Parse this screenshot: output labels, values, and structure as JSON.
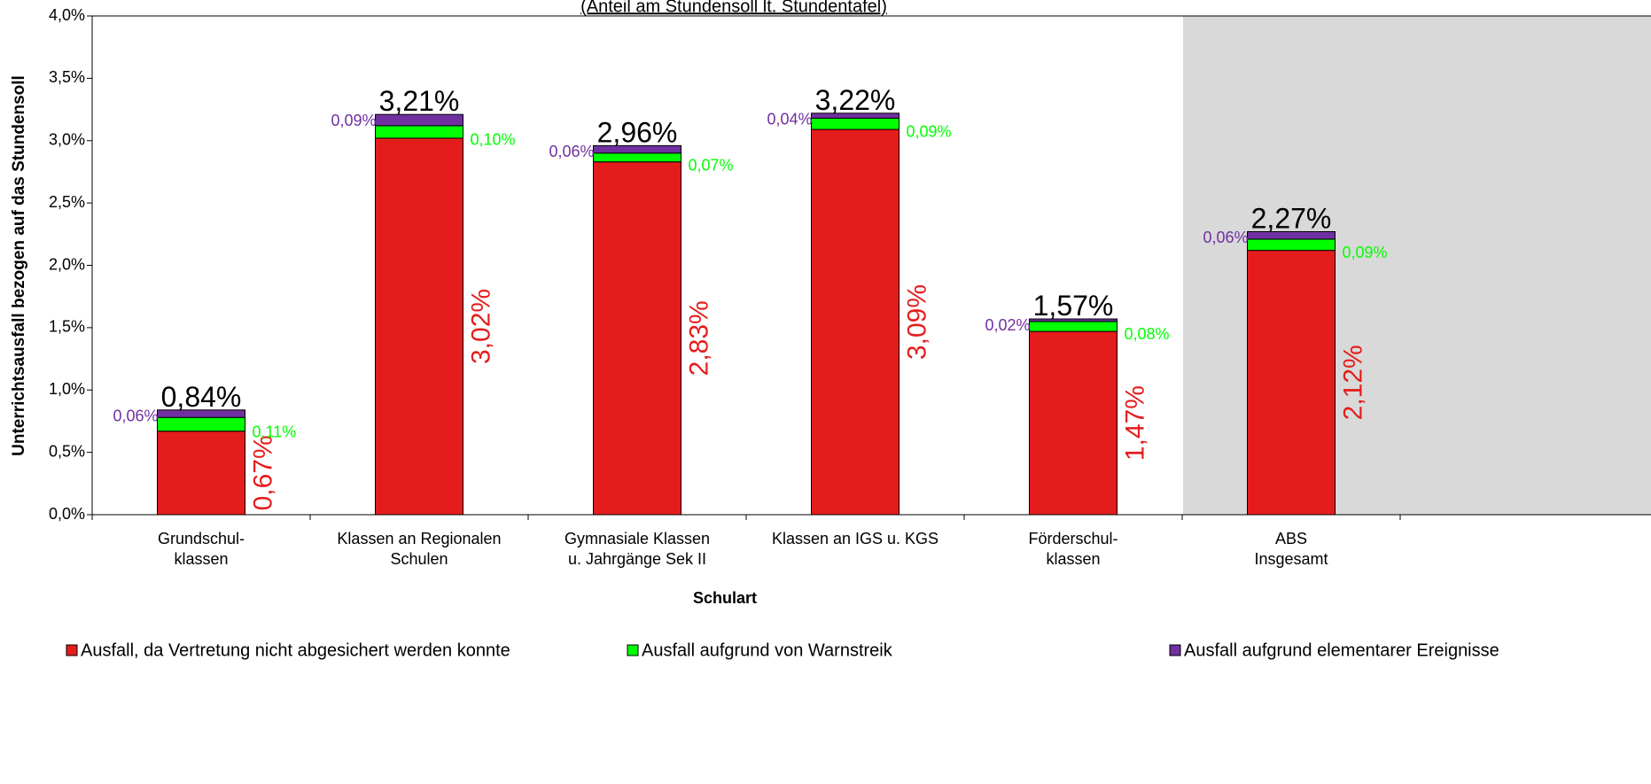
{
  "chart_data": {
    "type": "stacked_bar",
    "subtitle": "(Anteil am Stundensoll lt. Stundentafel)",
    "x_label": "Schulart",
    "y_label": "Unterrichtsausfall bezogen auf das Stundensoll",
    "categories": [
      "Grundschul-\nklassen",
      "Klassen an Regionalen\nSchulen",
      "Gymnasiale Klassen\nu. Jahrgänge Sek II",
      "Klassen an IGS u. KGS",
      "Förderschul-\nklassen",
      "ABS\nInsgesamt"
    ],
    "series": [
      {
        "name": "Ausfall, da Vertretung nicht abgesichert werden konnte",
        "color": "#e51c1c",
        "values": [
          0.67,
          3.02,
          2.83,
          3.09,
          1.47,
          2.12
        ],
        "value_labels": [
          "0,67%",
          "3,02%",
          "2,83%",
          "3,09%",
          "1,47%",
          "2,12%"
        ]
      },
      {
        "name": "Ausfall aufgrund von Warnstreik",
        "color": "#00ff00",
        "values": [
          0.11,
          0.1,
          0.07,
          0.09,
          0.08,
          0.09
        ],
        "value_labels": [
          "0,11%",
          "0,10%",
          "0,07%",
          "0,09%",
          "0,08%",
          "0,09%"
        ]
      },
      {
        "name": "Ausfall aufgrund elementarer Ereignisse",
        "color": "#7030a0",
        "values": [
          0.06,
          0.09,
          0.06,
          0.04,
          0.02,
          0.06
        ],
        "value_labels": [
          "0,06%",
          "0,09%",
          "0,06%",
          "0,04%",
          "0,02%",
          "0,06%"
        ]
      }
    ],
    "totals": [
      0.84,
      3.21,
      2.96,
      3.22,
      1.57,
      2.27
    ],
    "total_labels": [
      "0,84%",
      "3,21%",
      "2,96%",
      "3,22%",
      "1,57%",
      "2,27%"
    ],
    "ylim": [
      0,
      4
    ],
    "yticks": [
      {
        "value": 0,
        "label": "0,0%"
      },
      {
        "value": 0.5,
        "label": "0,5%"
      },
      {
        "value": 1,
        "label": "1,0%"
      },
      {
        "value": 1.5,
        "label": "1,5%"
      },
      {
        "value": 2,
        "label": "2,0%"
      },
      {
        "value": 2.5,
        "label": "2,5%"
      },
      {
        "value": 3,
        "label": "3,0%"
      },
      {
        "value": 3.5,
        "label": "3,5%"
      },
      {
        "value": 4,
        "label": "4,0%"
      }
    ],
    "legend": "bottom"
  }
}
